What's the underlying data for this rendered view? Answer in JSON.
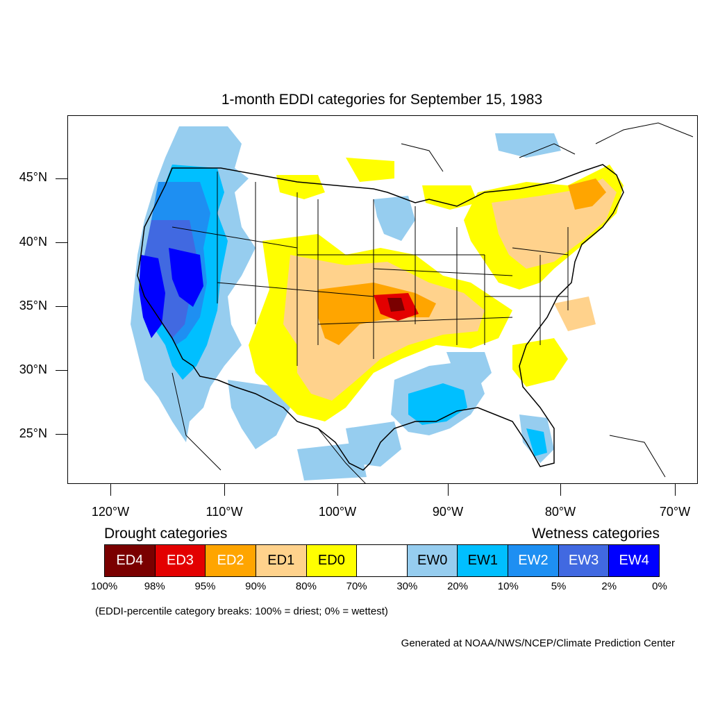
{
  "title": "1-month EDDI categories for September 15, 1983",
  "lat_labels": [
    {
      "label": "45°N",
      "lat": 45
    },
    {
      "label": "40°N",
      "lat": 40
    },
    {
      "label": "35°N",
      "lat": 35
    },
    {
      "label": "30°N",
      "lat": 30
    },
    {
      "label": "25°N",
      "lat": 25
    }
  ],
  "lon_labels": [
    {
      "label": "120°W",
      "lon": -120
    },
    {
      "label": "110°W",
      "lon": -110
    },
    {
      "label": "100°W",
      "lon": -100
    },
    {
      "label": "90°W",
      "lon": -90
    },
    {
      "label": "80°W",
      "lon": -80
    },
    {
      "label": "70°W",
      "lon": -70
    }
  ],
  "legend": {
    "drought_heading": "Drought categories",
    "wetness_heading": "Wetness categories",
    "categories": [
      {
        "label": "ED4",
        "color": "#7a0000",
        "text_color": "#ffffff"
      },
      {
        "label": "ED3",
        "color": "#e30000",
        "text_color": "#ffffff"
      },
      {
        "label": "ED2",
        "color": "#ffa500",
        "text_color": "#ffffff"
      },
      {
        "label": "ED1",
        "color": "#ffd28c",
        "text_color": "#000000"
      },
      {
        "label": "ED0",
        "color": "#ffff00",
        "text_color": "#000000"
      },
      {
        "label": "",
        "color": "#ffffff",
        "text_color": "#000000"
      },
      {
        "label": "EW0",
        "color": "#96cdef",
        "text_color": "#000000"
      },
      {
        "label": "EW1",
        "color": "#00bfff",
        "text_color": "#000000"
      },
      {
        "label": "EW2",
        "color": "#1e8ff2",
        "text_color": "#ffffff"
      },
      {
        "label": "EW3",
        "color": "#4169e1",
        "text_color": "#ffffff"
      },
      {
        "label": "EW4",
        "color": "#0000ff",
        "text_color": "#ffffff"
      }
    ],
    "percentiles": [
      "100%",
      "98%",
      "95%",
      "90%",
      "80%",
      "70%",
      "30%",
      "20%",
      "10%",
      "5%",
      "2%",
      "0%"
    ]
  },
  "note": "(EDDI-percentile category breaks: 100% = driest; 0% = wettest)",
  "credit": "Generated at NOAA/NWS/NCEP/Climate Prediction Center"
}
